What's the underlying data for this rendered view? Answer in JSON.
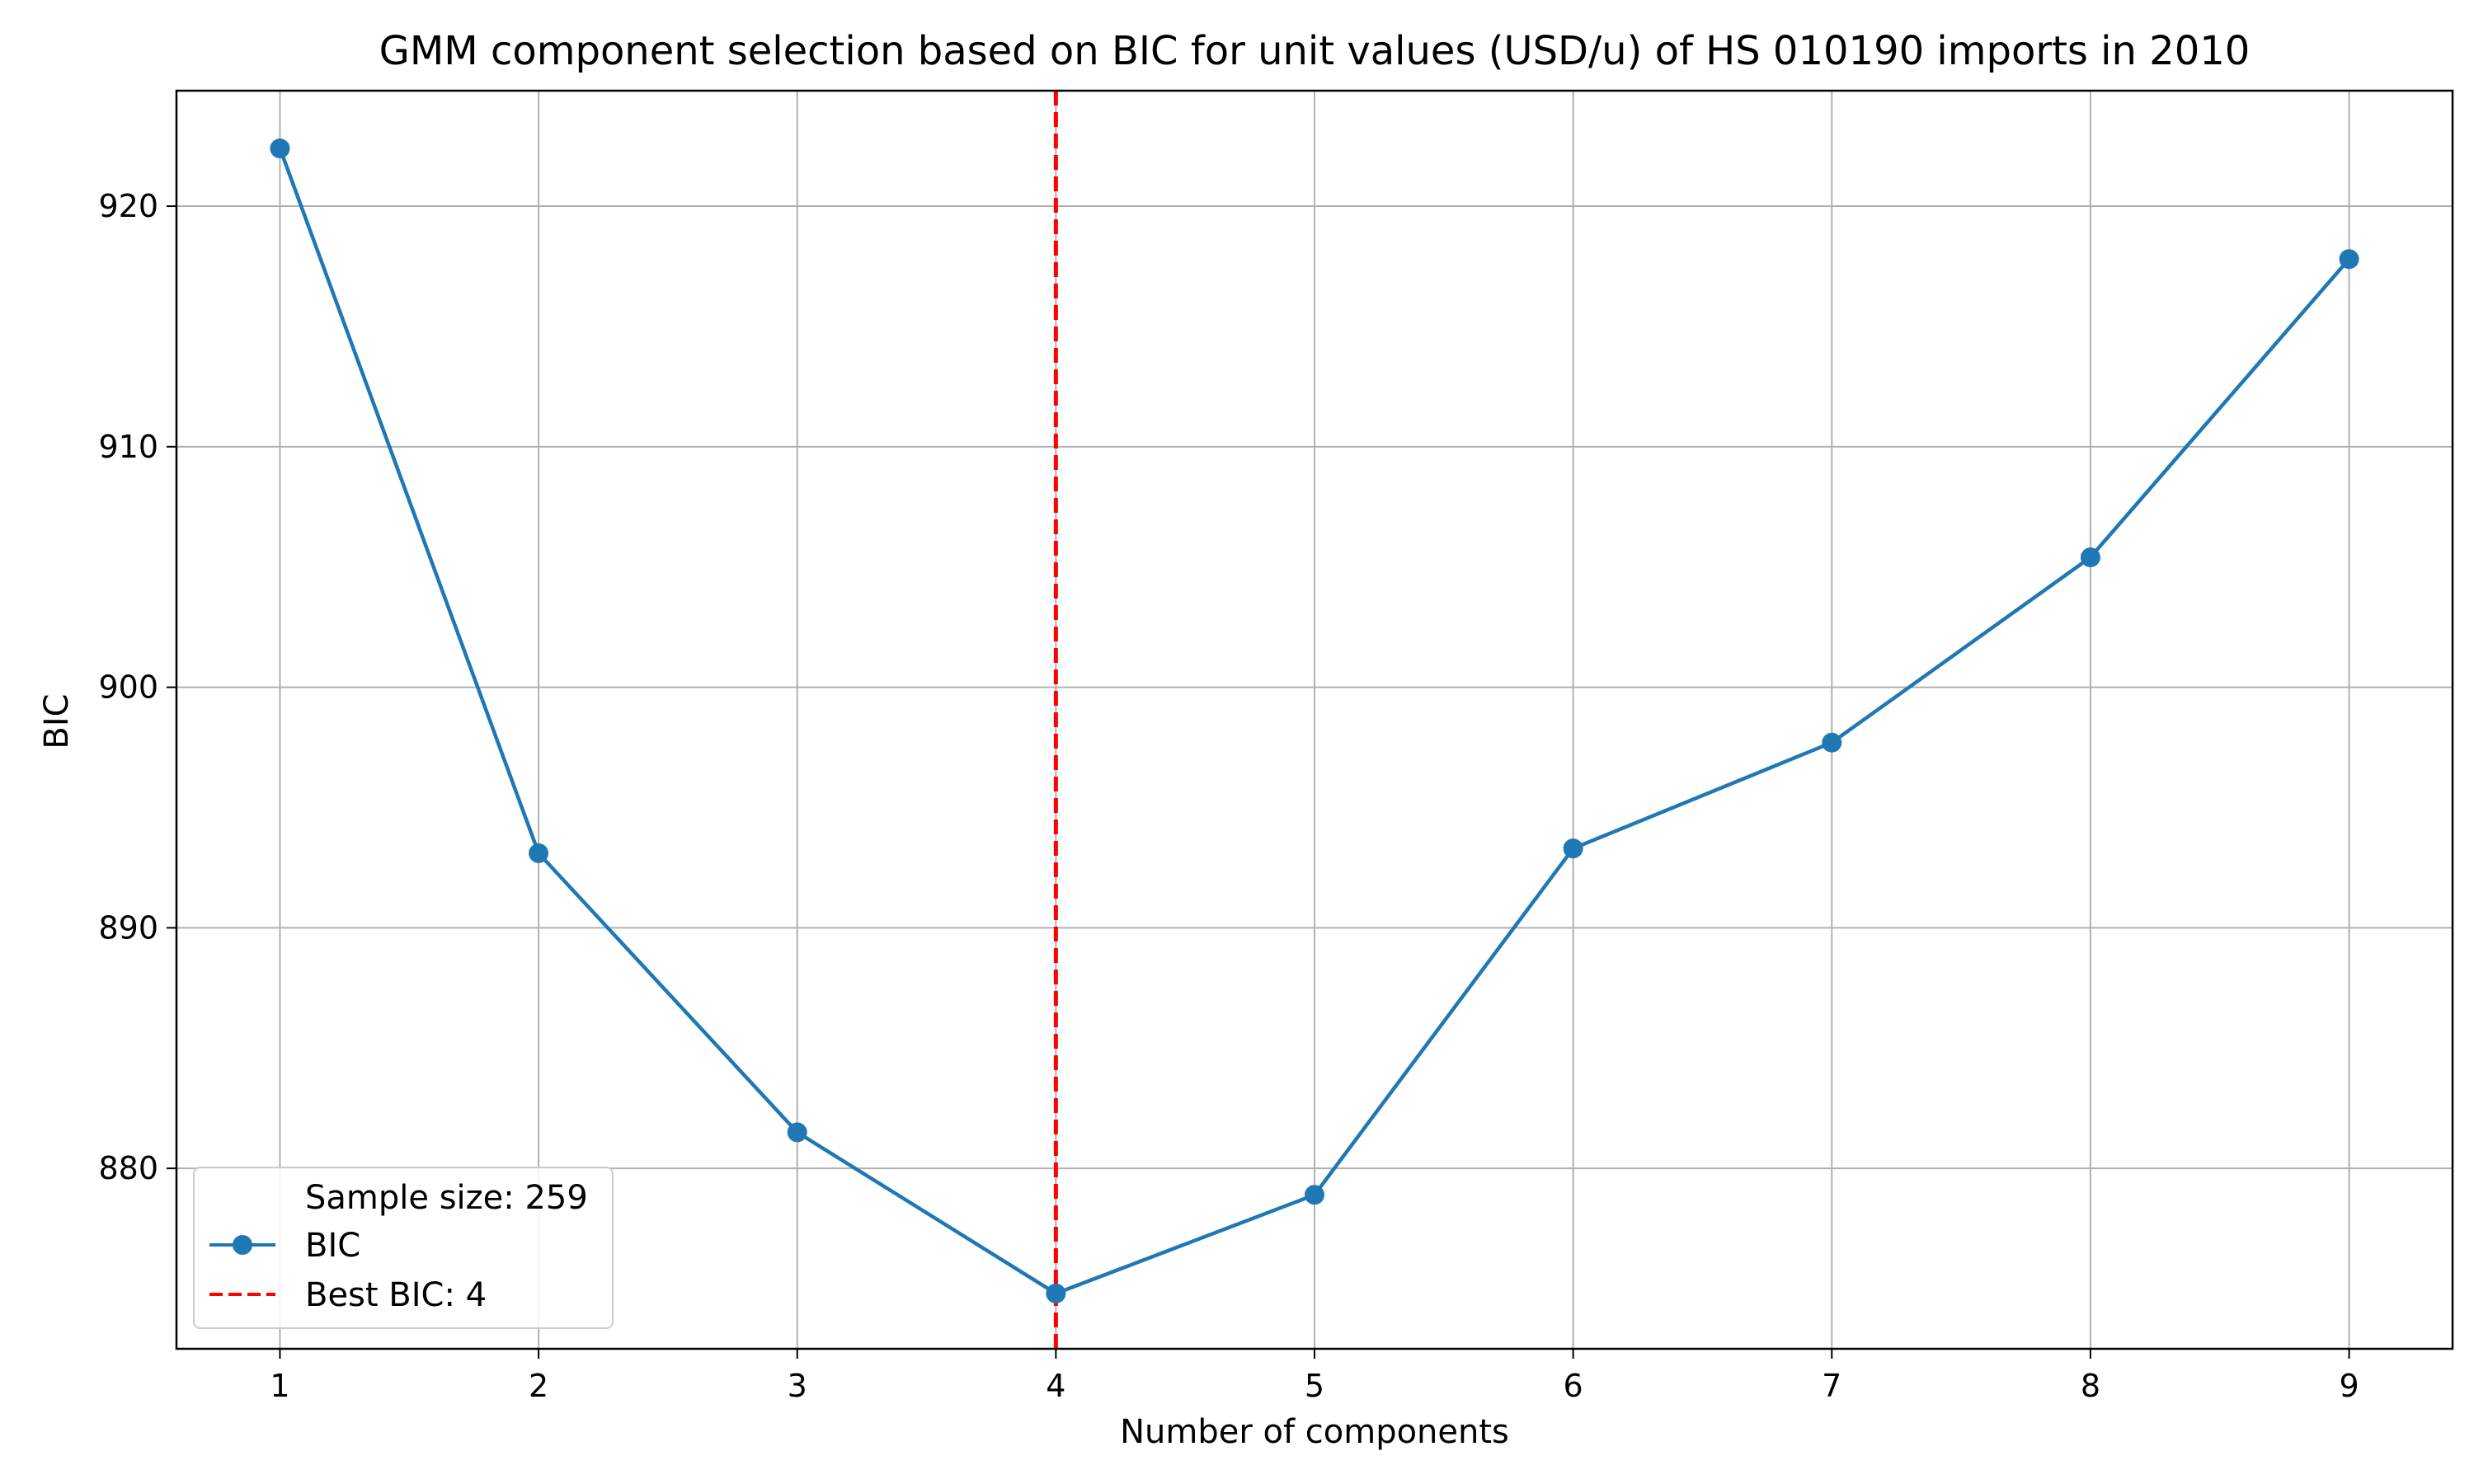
{
  "chart_data": {
    "type": "line",
    "title": "GMM component selection based on BIC for unit values (USD/u) of HS 010190 imports in 2010",
    "xlabel": "Number of components",
    "ylabel": "BIC",
    "x": [
      1,
      2,
      3,
      4,
      5,
      6,
      7,
      8,
      9
    ],
    "series": [
      {
        "name": "BIC",
        "values": [
          922.4,
          893.1,
          881.5,
          874.8,
          878.9,
          893.3,
          897.7,
          905.4,
          917.8
        ],
        "color": "#1f77b4"
      }
    ],
    "best": {
      "x": 4,
      "label": "Best BIC: 4",
      "color": "#ff0000"
    },
    "xticks": [
      "1",
      "2",
      "3",
      "4",
      "5",
      "6",
      "7",
      "8",
      "9"
    ],
    "yticks": [
      "880",
      "890",
      "900",
      "910",
      "920"
    ],
    "ylim": [
      872.5,
      924.8
    ],
    "xlim": [
      0.6,
      9.4
    ],
    "grid": true,
    "legend": {
      "placement": "lower-left",
      "entries": [
        "Sample size: 259",
        "BIC",
        "Best BIC: 4"
      ]
    }
  }
}
